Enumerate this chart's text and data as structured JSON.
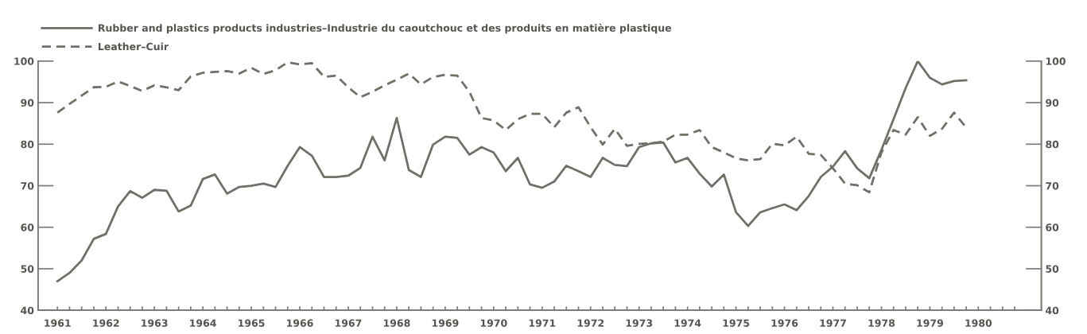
{
  "chart_data": {
    "type": "line",
    "x": [
      1961,
      1961.25,
      1961.5,
      1961.75,
      1962,
      1962.25,
      1962.5,
      1962.75,
      1963,
      1963.25,
      1963.5,
      1963.75,
      1964,
      1964.25,
      1964.5,
      1964.75,
      1965,
      1965.25,
      1965.5,
      1965.75,
      1966,
      1966.25,
      1966.5,
      1966.75,
      1967,
      1967.25,
      1967.5,
      1967.75,
      1968,
      1968.25,
      1968.5,
      1968.75,
      1969,
      1969.25,
      1969.5,
      1969.75,
      1970,
      1970.25,
      1970.5,
      1970.75,
      1971,
      1971.25,
      1971.5,
      1971.75,
      1972,
      1972.25,
      1972.5,
      1972.75,
      1973,
      1973.25,
      1973.5,
      1973.75,
      1974,
      1974.25,
      1974.5,
      1974.75,
      1975,
      1975.25,
      1975.5,
      1975.75,
      1976,
      1976.25,
      1976.5,
      1976.75,
      1977,
      1977.25,
      1977.5,
      1977.75,
      1978,
      1978.25,
      1978.5,
      1978.75,
      1979,
      1979.25,
      1979.5,
      1979.75
    ],
    "series": [
      {
        "name": "Rubber and plastics products industries–Industrie du caoutchouc et des produits en matière plastique",
        "color": "#707068",
        "line_style": "solid",
        "values": [
          47,
          49,
          52,
          57.2,
          58.4,
          65,
          68.7,
          67.1,
          69,
          68.8,
          63.8,
          65.2,
          71.6,
          72.7,
          68.1,
          69.7,
          70,
          70.5,
          69.7,
          74.8,
          79.3,
          77.2,
          72.1,
          72.1,
          72.4,
          74.3,
          81.8,
          76.1,
          86.3,
          73.8,
          72.1,
          79.9,
          81.8,
          81.5,
          77.5,
          79.3,
          78,
          73.5,
          76.7,
          70.3,
          69.5,
          71,
          74.8,
          73.5,
          72.1,
          76.7,
          75,
          74.7,
          79.3,
          80.2,
          80.4,
          75.6,
          76.7,
          72.9,
          69.8,
          72.7,
          63.6,
          60.3,
          63.6,
          64.6,
          65.5,
          64.1,
          67.5,
          72.1,
          74.6,
          78.3,
          74.2,
          71.8,
          78.6,
          86,
          93.5,
          100,
          96,
          94.4,
          95.2,
          95.4
        ]
      },
      {
        "name": "Leather–Cuir",
        "color": "#707068",
        "line_style": "dashed",
        "values": [
          87.6,
          89.7,
          91.7,
          93.7,
          93.8,
          95.1,
          94,
          92.8,
          94.2,
          93.7,
          93,
          96.3,
          97.2,
          97.4,
          97.6,
          97,
          98.4,
          96.9,
          97.8,
          99.7,
          99.2,
          99.5,
          96.2,
          96.5,
          93.7,
          91.3,
          92.6,
          94.2,
          95.5,
          97,
          94.4,
          96.2,
          96.7,
          96.5,
          92.6,
          86.3,
          85.7,
          83.4,
          86,
          87.3,
          87.3,
          84.1,
          87.6,
          88.9,
          84.1,
          79.9,
          83.7,
          79.6,
          80.1,
          80.2,
          80.6,
          82.3,
          82.3,
          83.4,
          79.3,
          78,
          76.6,
          76.1,
          76.4,
          80.1,
          79.7,
          81.8,
          77.7,
          77.4,
          74.2,
          70.5,
          70.1,
          68.4,
          78,
          83.4,
          82.3,
          86.5,
          82,
          83.7,
          87.6,
          84
        ]
      }
    ],
    "xlim": [
      1960.6,
      1981.3
    ],
    "xticks": [
      1961,
      {
        "value": 1961.25,
        "label": null
      },
      {
        "value": 1961.5,
        "label": null
      },
      {
        "value": 1961.75,
        "label": null
      },
      1962,
      {
        "value": 1962.25,
        "label": null
      },
      {
        "value": 1962.5,
        "label": null
      },
      {
        "value": 1962.75,
        "label": null
      },
      1963,
      {
        "value": 1963.25,
        "label": null
      },
      {
        "value": 1963.5,
        "label": null
      },
      {
        "value": 1963.75,
        "label": null
      },
      1964,
      {
        "value": 1964.25,
        "label": null
      },
      {
        "value": 1964.5,
        "label": null
      },
      {
        "value": 1964.75,
        "label": null
      },
      1965,
      {
        "value": 1965.25,
        "label": null
      },
      {
        "value": 1965.5,
        "label": null
      },
      {
        "value": 1965.75,
        "label": null
      },
      1966,
      {
        "value": 1966.25,
        "label": null
      },
      {
        "value": 1966.5,
        "label": null
      },
      {
        "value": 1966.75,
        "label": null
      },
      1967,
      {
        "value": 1967.25,
        "label": null
      },
      {
        "value": 1967.5,
        "label": null
      },
      {
        "value": 1967.75,
        "label": null
      },
      1968,
      {
        "value": 1968.25,
        "label": null
      },
      {
        "value": 1968.5,
        "label": null
      },
      {
        "value": 1968.75,
        "label": null
      },
      1969,
      {
        "value": 1969.25,
        "label": null
      },
      {
        "value": 1969.5,
        "label": null
      },
      {
        "value": 1969.75,
        "label": null
      },
      1970,
      {
        "value": 1970.25,
        "label": null
      },
      {
        "value": 1970.5,
        "label": null
      },
      {
        "value": 1970.75,
        "label": null
      },
      1971,
      {
        "value": 1971.25,
        "label": null
      },
      {
        "value": 1971.5,
        "label": null
      },
      {
        "value": 1971.75,
        "label": null
      },
      1972,
      {
        "value": 1972.25,
        "label": null
      },
      {
        "value": 1972.5,
        "label": null
      },
      {
        "value": 1972.75,
        "label": null
      },
      1973,
      {
        "value": 1973.25,
        "label": null
      },
      {
        "value": 1973.5,
        "label": null
      },
      {
        "value": 1973.75,
        "label": null
      },
      1974,
      {
        "value": 1974.25,
        "label": null
      },
      {
        "value": 1974.5,
        "label": null
      },
      {
        "value": 1974.75,
        "label": null
      },
      1975,
      {
        "value": 1975.25,
        "label": null
      },
      {
        "value": 1975.5,
        "label": null
      },
      {
        "value": 1975.75,
        "label": null
      },
      1976,
      {
        "value": 1976.25,
        "label": null
      },
      {
        "value": 1976.5,
        "label": null
      },
      {
        "value": 1976.75,
        "label": null
      },
      1977,
      {
        "value": 1977.25,
        "label": null
      },
      {
        "value": 1977.5,
        "label": null
      },
      {
        "value": 1977.75,
        "label": null
      },
      1978,
      {
        "value": 1978.25,
        "label": null
      },
      {
        "value": 1978.5,
        "label": null
      },
      {
        "value": 1978.75,
        "label": null
      },
      1979,
      {
        "value": 1979.25,
        "label": null
      },
      {
        "value": 1979.5,
        "label": null
      },
      {
        "value": 1979.75,
        "label": null
      },
      1980,
      {
        "value": 1980.25,
        "label": null
      },
      {
        "value": 1980.5,
        "label": null
      },
      {
        "value": 1980.75,
        "label": null
      }
    ],
    "ylim": [
      40,
      100
    ],
    "yticks": [
      40,
      50,
      60,
      70,
      80,
      90,
      100
    ],
    "y2lim": [
      40,
      100
    ],
    "y2ticks": [
      40,
      50,
      60,
      70,
      80,
      90,
      100
    ],
    "grid": false,
    "legend": "top left",
    "marker": "none"
  }
}
